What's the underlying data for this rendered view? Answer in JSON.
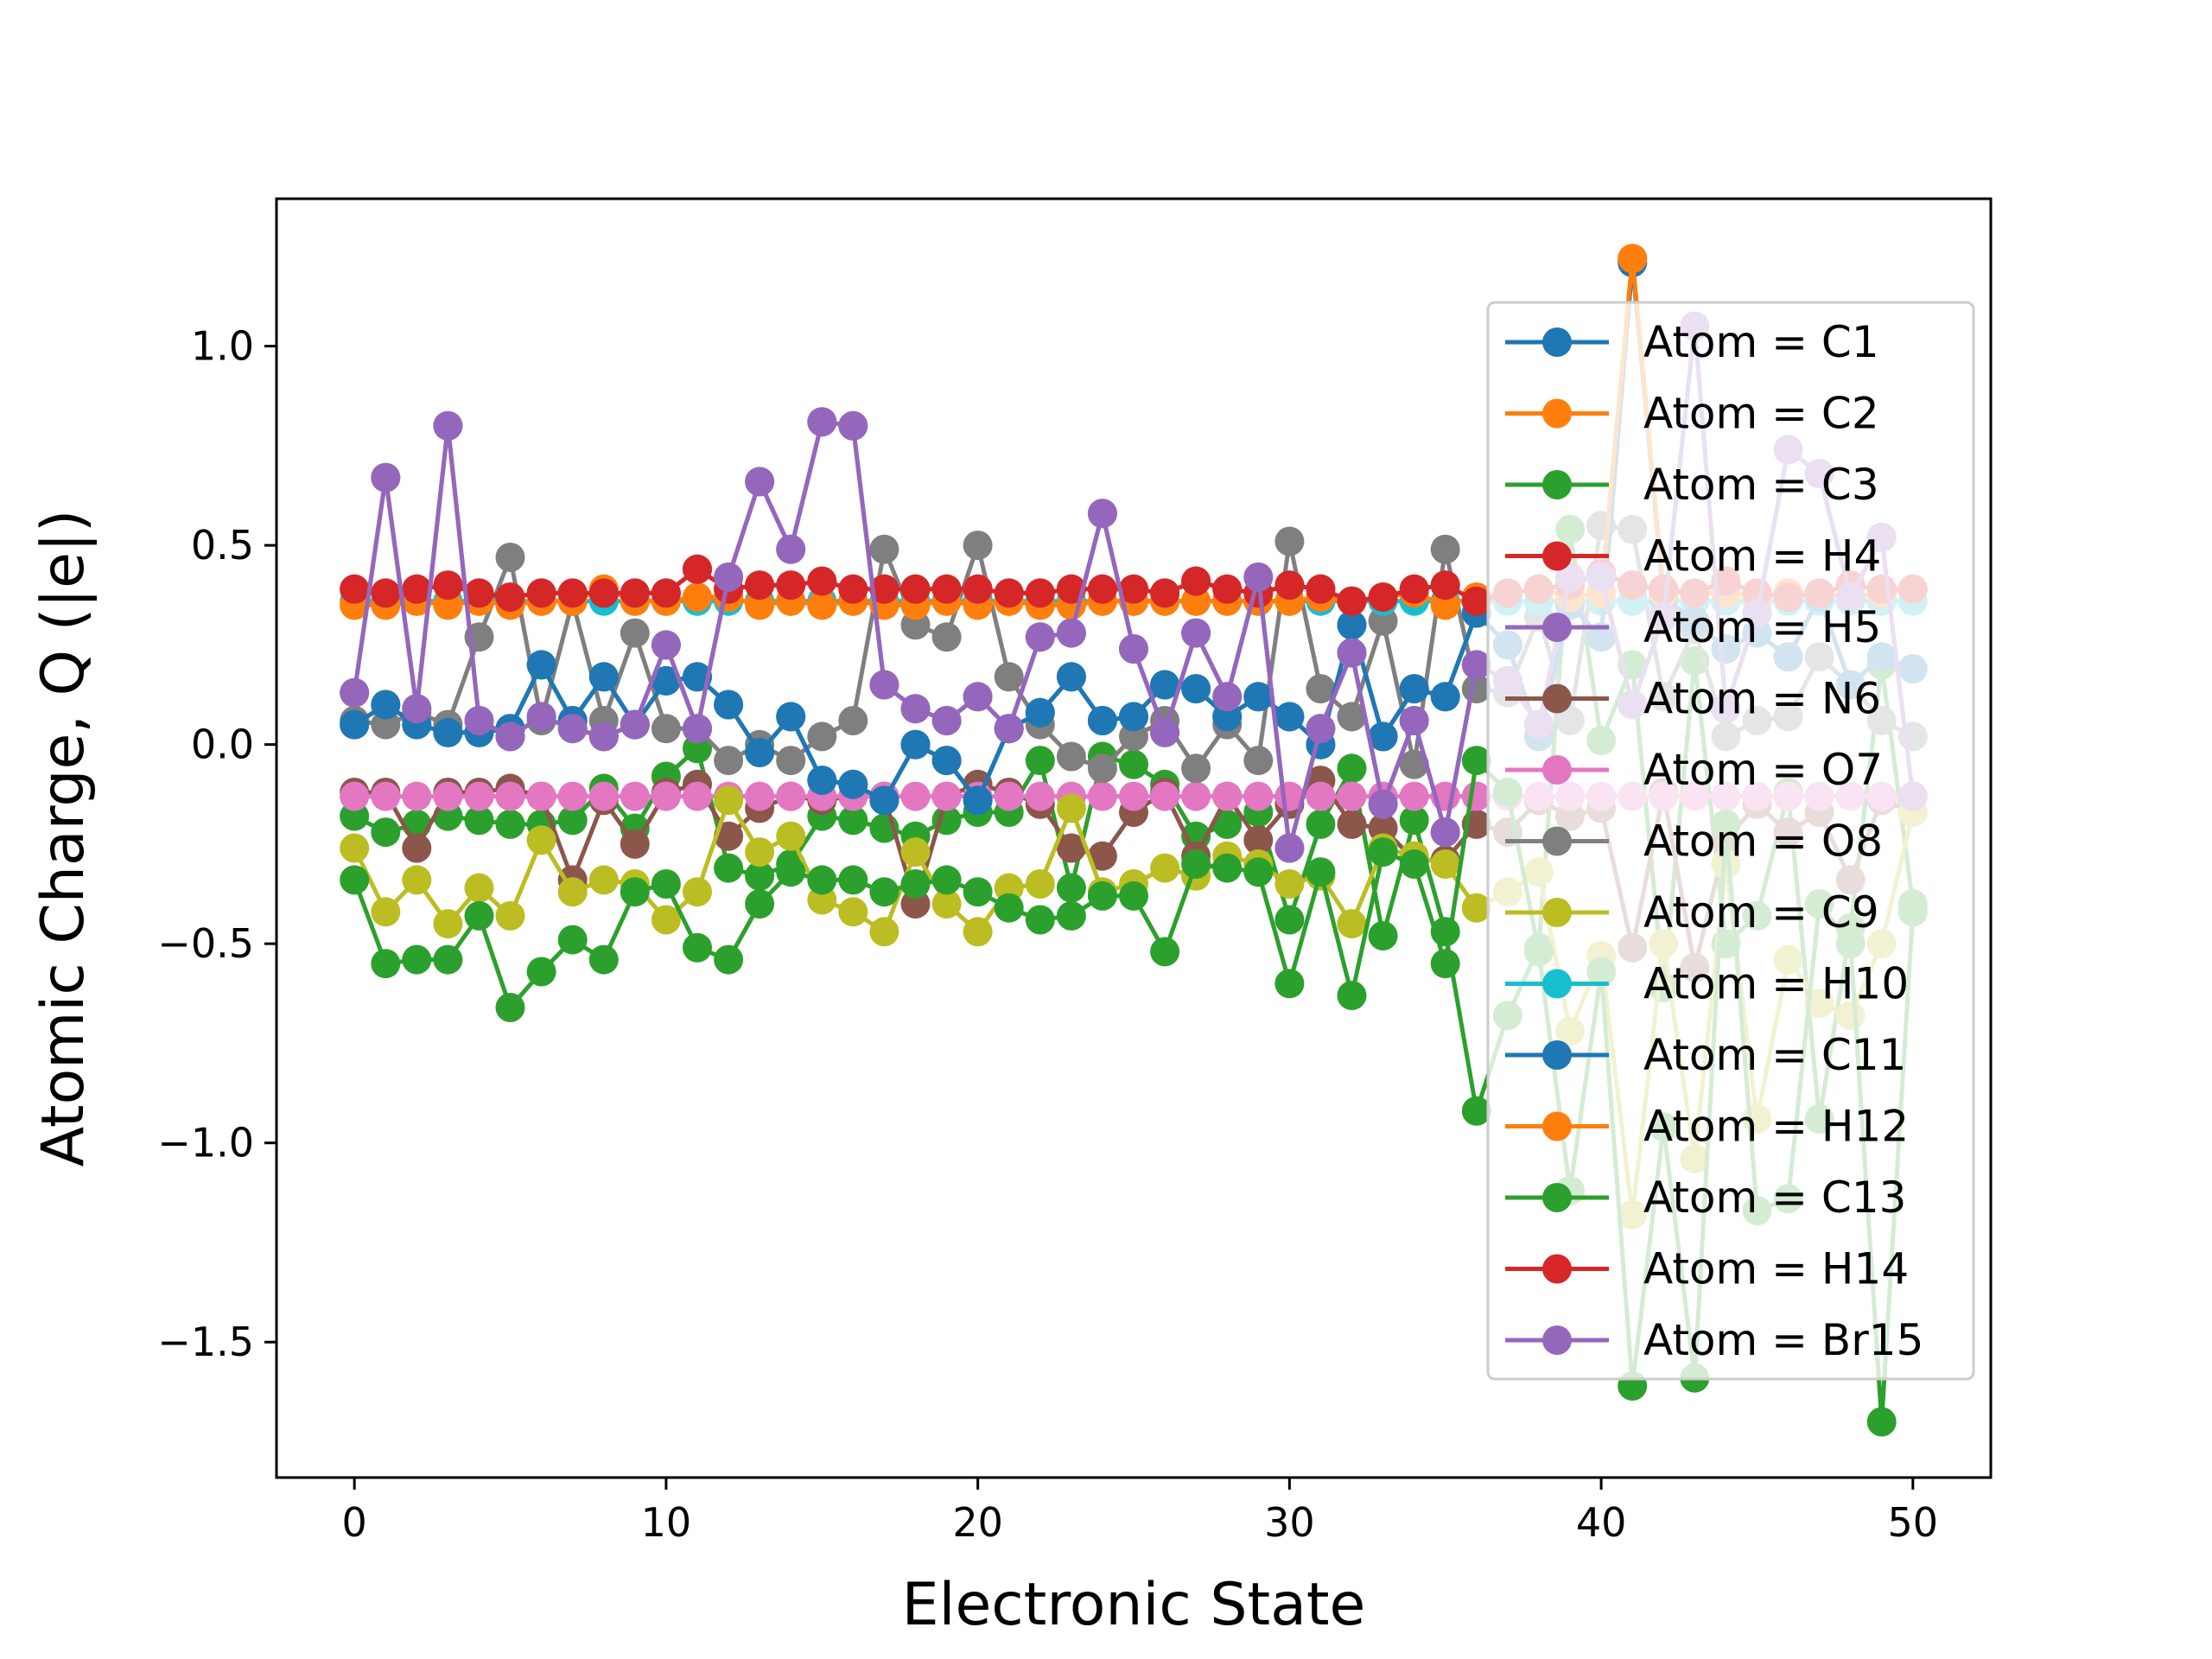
{
  "chart_data": {
    "type": "line",
    "title": "",
    "xlabel": "Electronic State",
    "ylabel": "Atomic Charge, Q (|e|)",
    "xlim": [
      -2.5,
      52.5
    ],
    "ylim": [
      -1.84,
      1.37
    ],
    "xticks": [
      0,
      10,
      20,
      30,
      40,
      50
    ],
    "xtick_labels": [
      "0",
      "10",
      "20",
      "30",
      "40",
      "50"
    ],
    "yticks": [
      -1.5,
      -1.0,
      -0.5,
      0.0,
      0.5,
      1.0
    ],
    "ytick_labels": [
      "−1.5",
      "−1.0",
      "−0.5",
      "0.0",
      "0.5",
      "1.0"
    ],
    "grid": false,
    "legend_position": "right",
    "x": [
      0,
      1,
      2,
      3,
      4,
      5,
      6,
      7,
      8,
      9,
      10,
      11,
      12,
      13,
      14,
      15,
      16,
      17,
      18,
      19,
      20,
      21,
      22,
      23,
      24,
      25,
      26,
      27,
      28,
      29,
      30,
      31,
      32,
      33,
      34,
      35,
      36,
      37,
      38,
      39,
      40,
      41,
      42,
      43,
      44,
      45,
      46,
      47,
      48,
      49,
      50
    ],
    "series": [
      {
        "name": "Atom = C1",
        "color": "#1f77b4",
        "values": [
          0.05,
          0.1,
          0.05,
          0.03,
          0.03,
          0.04,
          0.2,
          0.06,
          0.17,
          0.05,
          0.16,
          0.17,
          0.1,
          -0.02,
          0.07,
          -0.09,
          -0.1,
          -0.14,
          0.0,
          -0.04,
          -0.14,
          0.04,
          0.08,
          0.17,
          0.06,
          0.07,
          0.15,
          0.14,
          0.07,
          0.12,
          0.07,
          -0.0,
          0.3,
          0.02,
          0.14,
          0.12,
          0.33,
          0.25,
          0.02,
          0.35,
          0.27,
          1.21,
          0.37,
          0.31,
          0.24,
          0.28,
          0.22,
          0.37,
          0.15,
          0.22,
          0.19
        ]
      },
      {
        "name": "Atom = C2",
        "color": "#ff7f0e",
        "values": [
          0.35,
          0.35,
          0.36,
          0.35,
          0.36,
          0.35,
          0.36,
          0.36,
          0.39,
          0.36,
          0.36,
          0.37,
          0.37,
          0.35,
          0.36,
          0.35,
          0.36,
          0.35,
          0.35,
          0.36,
          0.35,
          0.36,
          0.35,
          0.35,
          0.36,
          0.36,
          0.36,
          0.36,
          0.36,
          0.36,
          0.36,
          0.37,
          0.36,
          0.37,
          0.38,
          0.35,
          0.37,
          0.38,
          0.39,
          0.37,
          0.38,
          1.22,
          0.38,
          0.38,
          0.38,
          0.37,
          0.38,
          0.38,
          0.37,
          0.38,
          0.39
        ]
      },
      {
        "name": "Atom = C3",
        "color": "#2ca02c",
        "values": [
          -0.18,
          -0.22,
          -0.2,
          -0.18,
          -0.19,
          -0.2,
          -0.2,
          -0.19,
          -0.11,
          -0.21,
          -0.08,
          -0.01,
          -0.31,
          -0.33,
          -0.3,
          -0.18,
          -0.19,
          -0.21,
          -0.23,
          -0.19,
          -0.17,
          -0.17,
          -0.04,
          -0.36,
          -0.03,
          -0.05,
          -0.1,
          -0.23,
          -0.2,
          -0.17,
          -0.44,
          -0.2,
          -0.06,
          -0.48,
          -0.19,
          -0.47,
          -0.92,
          -0.68,
          -0.51,
          0.54,
          0.01,
          0.2,
          -0.61,
          0.21,
          -0.5,
          -0.43,
          -0.12,
          -0.94,
          -0.46,
          0.2,
          -0.4
        ]
      },
      {
        "name": "Atom = H4",
        "color": "#d62728",
        "values": [
          0.39,
          0.38,
          0.39,
          0.4,
          0.38,
          0.37,
          0.38,
          0.38,
          0.38,
          0.38,
          0.38,
          0.44,
          0.39,
          0.4,
          0.4,
          0.41,
          0.39,
          0.39,
          0.39,
          0.39,
          0.39,
          0.38,
          0.38,
          0.39,
          0.39,
          0.39,
          0.38,
          0.41,
          0.39,
          0.38,
          0.4,
          0.39,
          0.36,
          0.37,
          0.39,
          0.4,
          0.36,
          0.38,
          0.39,
          0.4,
          0.43,
          0.4,
          0.39,
          0.38,
          0.41,
          0.38,
          0.37,
          0.38,
          0.4,
          0.39,
          0.39
        ]
      },
      {
        "name": "Atom = H5",
        "color": "#9467bd",
        "values": [
          0.13,
          0.67,
          0.09,
          0.8,
          0.06,
          0.02,
          0.07,
          0.04,
          0.02,
          0.05,
          0.25,
          0.04,
          0.42,
          0.66,
          0.49,
          0.81,
          0.8,
          0.15,
          0.09,
          0.06,
          0.12,
          0.04,
          0.27,
          0.28,
          0.58,
          0.24,
          0.03,
          0.28,
          0.12,
          0.42,
          -0.26,
          0.04,
          0.23,
          -0.15,
          0.06,
          -0.22,
          0.2,
          0.16,
          0.05,
          0.42,
          0.42,
          0.1,
          0.32,
          1.05,
          0.09,
          0.33,
          0.74,
          0.68,
          0.37,
          0.52,
          -0.13
        ]
      },
      {
        "name": "Atom = N6",
        "color": "#8c564b",
        "values": [
          -0.12,
          -0.12,
          -0.26,
          -0.12,
          -0.12,
          -0.11,
          -0.13,
          -0.34,
          -0.14,
          -0.25,
          -0.12,
          -0.1,
          -0.23,
          -0.16,
          -0.13,
          -0.14,
          -0.13,
          -0.13,
          -0.4,
          -0.13,
          -0.1,
          -0.12,
          -0.15,
          -0.26,
          -0.28,
          -0.17,
          -0.12,
          -0.28,
          -0.13,
          -0.24,
          -0.15,
          -0.09,
          -0.2,
          -0.21,
          -0.29,
          -0.29,
          -0.2,
          -0.22,
          -0.14,
          -0.18,
          -0.16,
          -0.51,
          -0.12,
          -0.56,
          -0.24,
          -0.15,
          -0.22,
          -0.17,
          -0.34,
          -0.14,
          -0.17
        ]
      },
      {
        "name": "Atom = O7",
        "color": "#e377c2",
        "values": [
          -0.13,
          -0.13,
          -0.13,
          -0.13,
          -0.13,
          -0.13,
          -0.13,
          -0.13,
          -0.13,
          -0.13,
          -0.13,
          -0.13,
          -0.13,
          -0.13,
          -0.13,
          -0.13,
          -0.13,
          -0.13,
          -0.13,
          -0.13,
          -0.13,
          -0.13,
          -0.13,
          -0.13,
          -0.13,
          -0.13,
          -0.13,
          -0.13,
          -0.13,
          -0.13,
          -0.13,
          -0.13,
          -0.13,
          -0.13,
          -0.13,
          -0.13,
          -0.13,
          -0.13,
          -0.13,
          -0.13,
          -0.13,
          -0.13,
          -0.13,
          -0.13,
          -0.13,
          -0.13,
          -0.13,
          -0.13,
          -0.13,
          -0.13,
          -0.13
        ]
      },
      {
        "name": "Atom = O8",
        "color": "#7f7f7f",
        "values": [
          0.06,
          0.05,
          0.08,
          0.05,
          0.27,
          0.47,
          0.06,
          0.36,
          0.06,
          0.28,
          0.04,
          0.04,
          -0.04,
          0.0,
          -0.04,
          0.02,
          0.06,
          0.49,
          0.3,
          0.27,
          0.5,
          0.17,
          0.05,
          -0.03,
          -0.06,
          0.02,
          0.06,
          -0.06,
          0.05,
          -0.04,
          0.51,
          0.14,
          0.07,
          0.31,
          -0.05,
          0.49,
          0.14,
          0.13,
          0.32,
          0.06,
          0.55,
          0.54,
          0.12,
          0.29,
          0.02,
          0.06,
          0.07,
          0.22,
          0.15,
          0.06,
          0.02
        ]
      },
      {
        "name": "Atom = C9",
        "color": "#bcbd22",
        "values": [
          -0.26,
          -0.42,
          -0.34,
          -0.45,
          -0.36,
          -0.43,
          -0.24,
          -0.37,
          -0.34,
          -0.35,
          -0.44,
          -0.37,
          -0.14,
          -0.27,
          -0.23,
          -0.39,
          -0.42,
          -0.47,
          -0.27,
          -0.4,
          -0.47,
          -0.36,
          -0.35,
          -0.16,
          -0.37,
          -0.35,
          -0.31,
          -0.33,
          -0.28,
          -0.3,
          -0.35,
          -0.33,
          -0.45,
          -0.26,
          -0.28,
          -0.3,
          -0.41,
          -0.37,
          -0.32,
          -0.72,
          -0.53,
          -1.18,
          -0.5,
          -1.04,
          -0.3,
          -0.94,
          -0.54,
          -0.65,
          -0.68,
          -0.5,
          -0.17
        ]
      },
      {
        "name": "Atom = H10",
        "color": "#17becf",
        "values": [
          0.36,
          0.36,
          0.36,
          0.36,
          0.36,
          0.36,
          0.36,
          0.36,
          0.36,
          0.36,
          0.36,
          0.36,
          0.36,
          0.36,
          0.36,
          0.36,
          0.36,
          0.36,
          0.36,
          0.36,
          0.36,
          0.36,
          0.36,
          0.36,
          0.36,
          0.36,
          0.36,
          0.36,
          0.36,
          0.36,
          0.36,
          0.36,
          0.36,
          0.36,
          0.36,
          0.36,
          0.36,
          0.36,
          0.36,
          0.36,
          0.36,
          0.36,
          0.36,
          0.36,
          0.36,
          0.36,
          0.36,
          0.36,
          0.36,
          0.36,
          0.36
        ]
      },
      {
        "name": "Atom = C11",
        "color": "#1f77b4",
        "values": [
          0.05,
          0.1,
          0.05,
          0.03,
          0.03,
          0.04,
          0.2,
          0.06,
          0.17,
          0.05,
          0.16,
          0.17,
          0.1,
          -0.02,
          0.07,
          -0.09,
          -0.1,
          -0.14,
          0.0,
          -0.04,
          -0.14,
          0.04,
          0.08,
          0.17,
          0.06,
          0.07,
          0.15,
          0.14,
          0.07,
          0.12,
          0.07,
          -0.0,
          0.3,
          0.02,
          0.14,
          0.12,
          0.33,
          0.25,
          0.02,
          0.35,
          0.27,
          1.21,
          0.37,
          0.31,
          0.24,
          0.28,
          0.22,
          0.37,
          0.15,
          0.22,
          0.19
        ]
      },
      {
        "name": "Atom = H12",
        "color": "#ff7f0e",
        "values": [
          0.35,
          0.35,
          0.36,
          0.35,
          0.36,
          0.35,
          0.36,
          0.36,
          0.39,
          0.36,
          0.36,
          0.37,
          0.37,
          0.35,
          0.36,
          0.35,
          0.36,
          0.35,
          0.35,
          0.36,
          0.35,
          0.36,
          0.35,
          0.35,
          0.36,
          0.36,
          0.36,
          0.36,
          0.36,
          0.36,
          0.36,
          0.37,
          0.36,
          0.37,
          0.38,
          0.35,
          0.37,
          0.38,
          0.39,
          0.37,
          0.38,
          1.22,
          0.38,
          0.38,
          0.38,
          0.37,
          0.38,
          0.38,
          0.37,
          0.38,
          0.39
        ]
      },
      {
        "name": "Atom = C13",
        "color": "#2ca02c",
        "values": [
          -0.34,
          -0.55,
          -0.54,
          -0.54,
          -0.43,
          -0.66,
          -0.57,
          -0.49,
          -0.54,
          -0.37,
          -0.35,
          -0.51,
          -0.54,
          -0.4,
          -0.32,
          -0.34,
          -0.34,
          -0.37,
          -0.35,
          -0.34,
          -0.37,
          -0.41,
          -0.44,
          -0.43,
          -0.38,
          -0.38,
          -0.52,
          -0.3,
          -0.31,
          -0.32,
          -0.6,
          -0.32,
          -0.63,
          -0.27,
          -0.3,
          -0.55,
          -0.04,
          -0.12,
          -0.52,
          -1.12,
          -0.57,
          -1.61,
          -0.96,
          -1.59,
          -0.2,
          -1.17,
          -1.14,
          -0.4,
          -0.5,
          -1.7,
          -0.42
        ]
      },
      {
        "name": "Atom = H14",
        "color": "#d62728",
        "values": [
          0.39,
          0.38,
          0.39,
          0.4,
          0.38,
          0.37,
          0.38,
          0.38,
          0.38,
          0.38,
          0.38,
          0.44,
          0.39,
          0.4,
          0.4,
          0.41,
          0.39,
          0.39,
          0.39,
          0.39,
          0.39,
          0.38,
          0.38,
          0.39,
          0.39,
          0.39,
          0.38,
          0.41,
          0.39,
          0.38,
          0.4,
          0.39,
          0.36,
          0.37,
          0.39,
          0.4,
          0.36,
          0.38,
          0.39,
          0.4,
          0.43,
          0.4,
          0.39,
          0.38,
          0.41,
          0.38,
          0.37,
          0.38,
          0.4,
          0.39,
          0.39
        ]
      },
      {
        "name": "Atom = Br15",
        "color": "#9467bd",
        "values": [
          0.13,
          0.67,
          0.09,
          0.8,
          0.06,
          0.02,
          0.07,
          0.04,
          0.02,
          0.05,
          0.25,
          0.04,
          0.42,
          0.66,
          0.49,
          0.81,
          0.8,
          0.15,
          0.09,
          0.06,
          0.12,
          0.04,
          0.27,
          0.28,
          0.58,
          0.24,
          0.03,
          0.28,
          0.12,
          0.42,
          -0.26,
          0.04,
          0.23,
          -0.15,
          0.06,
          -0.22,
          0.2,
          0.16,
          0.05,
          0.42,
          0.42,
          0.1,
          0.32,
          1.05,
          0.09,
          0.33,
          0.74,
          0.68,
          0.37,
          0.52,
          -0.13
        ]
      }
    ]
  }
}
